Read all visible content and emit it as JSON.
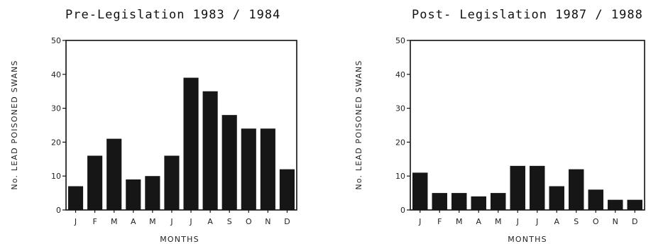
{
  "chart_data": [
    {
      "type": "bar",
      "title": "Pre-Legislation  1983 / 1984",
      "xlabel": "MONTHS",
      "ylabel": "No. LEAD POISONED SWANS",
      "categories": [
        "J",
        "F",
        "M",
        "A",
        "M",
        "J",
        "J",
        "A",
        "S",
        "O",
        "N",
        "D"
      ],
      "values": [
        7,
        16,
        21,
        9,
        10,
        16,
        39,
        35,
        28,
        24,
        24,
        12
      ],
      "ylim": [
        0,
        50
      ],
      "yticks": [
        0,
        10,
        20,
        30,
        40,
        50
      ],
      "grid": false,
      "bar_color": "#161616"
    },
    {
      "type": "bar",
      "title": "Post- Legislation   1987 / 1988",
      "xlabel": "MONTHS",
      "ylabel": "No. LEAD POISONED SWANS",
      "categories": [
        "J",
        "F",
        "M",
        "A",
        "M",
        "J",
        "J",
        "A",
        "S",
        "O",
        "N",
        "D"
      ],
      "values": [
        11,
        5,
        5,
        4,
        5,
        13,
        13,
        7,
        12,
        6,
        3,
        3
      ],
      "ylim": [
        0,
        50
      ],
      "yticks": [
        0,
        10,
        20,
        30,
        40,
        50
      ],
      "grid": false,
      "bar_color": "#161616"
    }
  ]
}
